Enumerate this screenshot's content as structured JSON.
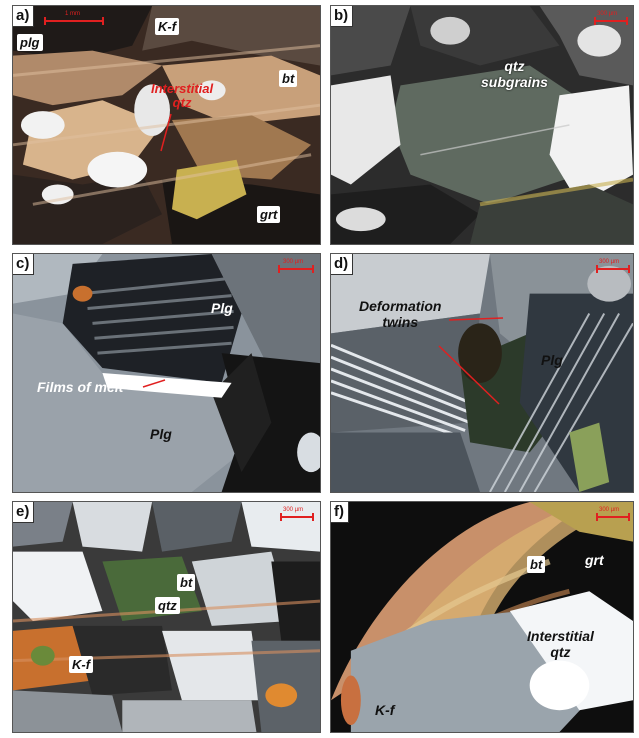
{
  "panels": [
    {
      "id": "a",
      "label": "a)",
      "scale": "1 mm",
      "minerals": [
        "plg",
        "K-f",
        "bt",
        "grt"
      ],
      "annotation": "Interstitial\nqtz"
    },
    {
      "id": "b",
      "label": "b)",
      "scale": "300 µm",
      "annotation": "qtz\nsubgrains"
    },
    {
      "id": "c",
      "label": "c)",
      "scale": "300 µm",
      "minerals": [
        "Plg",
        "Plg"
      ],
      "annotation": "Films of melt"
    },
    {
      "id": "d",
      "label": "d)",
      "scale": "300 µm",
      "minerals": [
        "Plg"
      ],
      "annotation": "Deformation\ntwins"
    },
    {
      "id": "e",
      "label": "e)",
      "scale": "300 µm",
      "minerals": [
        "bt",
        "qtz",
        "K-f"
      ]
    },
    {
      "id": "f",
      "label": "f)",
      "scale": "300 µm",
      "minerals": [
        "bt",
        "grt",
        "K-f"
      ],
      "annotation": "Interstitial\nqtz"
    }
  ],
  "colors": {
    "annotation_red": "#e02020",
    "label_bg": "#ffffff"
  }
}
